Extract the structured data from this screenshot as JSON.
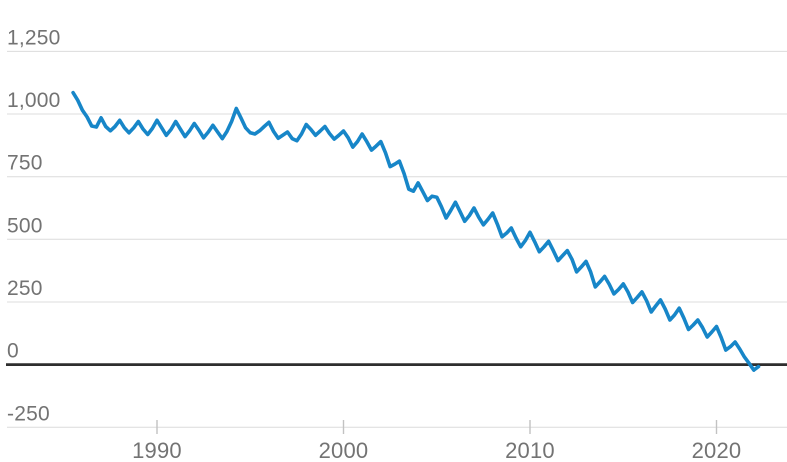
{
  "chart_data": {
    "type": "line",
    "title": "",
    "legend": false,
    "grid": true,
    "x_axis": {
      "range": [
        1985.5,
        2022.25
      ],
      "ticks": [
        {
          "label": "1990",
          "value": 1990
        },
        {
          "label": "2000",
          "value": 2000
        },
        {
          "label": "2010",
          "value": 2010
        },
        {
          "label": "2020",
          "value": 2020
        }
      ]
    },
    "y_axis": {
      "range": [
        -250,
        1250
      ],
      "baseline_value": 0,
      "ticks": [
        {
          "label": "1,250",
          "value": 1250
        },
        {
          "label": "1,000",
          "value": 1000
        },
        {
          "label": "750",
          "value": 750
        },
        {
          "label": "500",
          "value": 500
        },
        {
          "label": "250",
          "value": 250
        },
        {
          "label": "0",
          "value": 0
        },
        {
          "label": "-250",
          "value": -250
        }
      ]
    },
    "colors": {
      "line": "#1786c8",
      "gridline": "#dcdcdc",
      "baseline": "#2e2e2e",
      "tick": "#c2c2c2",
      "label": "#737373",
      "background": "#ffffff"
    },
    "series": [
      {
        "name": "series-1",
        "color": "#1786c8",
        "x_start": 1985.5,
        "x_step": 0.25,
        "values": [
          1085,
          1055,
          1015,
          988,
          952,
          948,
          985,
          950,
          933,
          950,
          975,
          945,
          925,
          945,
          970,
          940,
          918,
          942,
          975,
          945,
          915,
          938,
          970,
          940,
          910,
          933,
          962,
          935,
          905,
          928,
          955,
          928,
          902,
          930,
          970,
          1022,
          985,
          945,
          925,
          920,
          933,
          950,
          967,
          930,
          903,
          916,
          928,
          902,
          893,
          920,
          958,
          938,
          915,
          932,
          950,
          922,
          900,
          915,
          932,
          905,
          868,
          890,
          920,
          890,
          856,
          872,
          890,
          845,
          790,
          800,
          812,
          762,
          700,
          692,
          725,
          690,
          655,
          672,
          668,
          630,
          585,
          615,
          648,
          610,
          572,
          595,
          625,
          588,
          558,
          580,
          605,
          560,
          510,
          525,
          545,
          505,
          470,
          495,
          528,
          490,
          450,
          470,
          492,
          455,
          415,
          435,
          455,
          420,
          370,
          390,
          412,
          370,
          310,
          330,
          352,
          320,
          282,
          300,
          322,
          290,
          248,
          268,
          290,
          255,
          210,
          235,
          258,
          222,
          178,
          198,
          225,
          185,
          140,
          158,
          178,
          148,
          110,
          130,
          152,
          108,
          58,
          72,
          90,
          62,
          30,
          5,
          -22,
          -8
        ]
      }
    ]
  }
}
